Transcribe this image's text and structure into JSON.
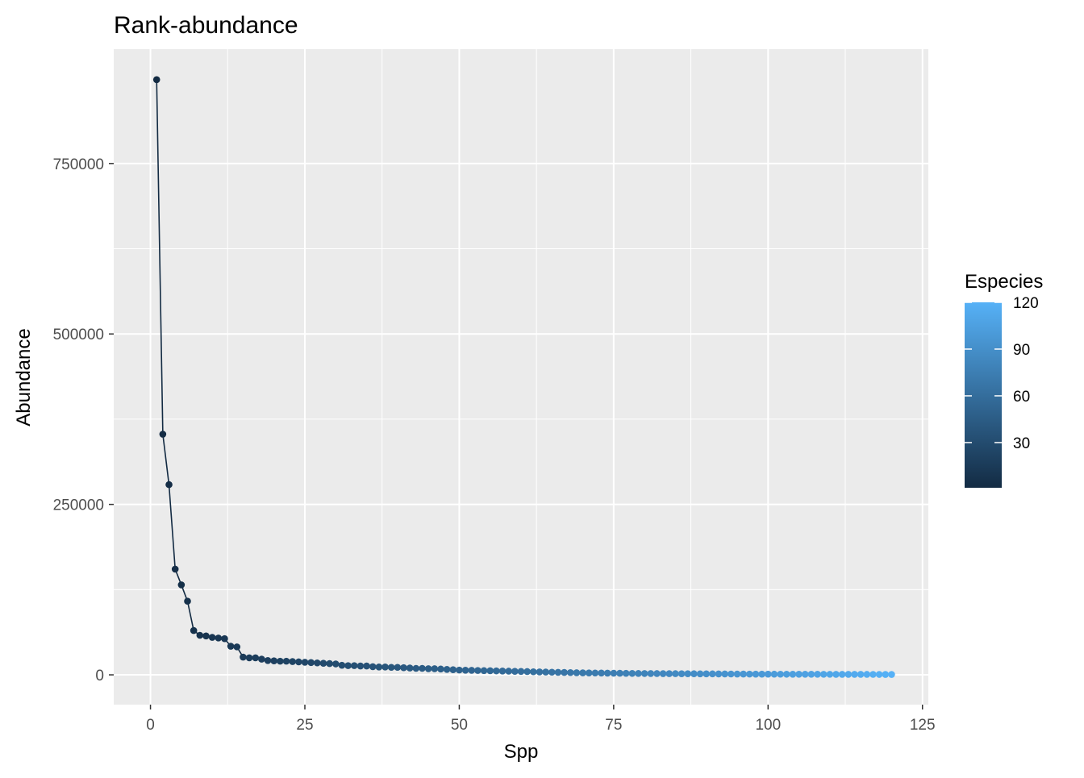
{
  "chart_data": {
    "type": "line",
    "title": "Rank-abundance",
    "xlabel": "Spp",
    "ylabel": "Abundance",
    "xlim": [
      -5.95,
      125.95
    ],
    "ylim": [
      -43700,
      917700
    ],
    "x_ticks": [
      0,
      25,
      50,
      75,
      100,
      125
    ],
    "x_tick_labels": [
      "0",
      "25",
      "50",
      "75",
      "100",
      "125"
    ],
    "y_ticks": [
      0,
      250000,
      500000,
      750000
    ],
    "y_tick_labels": [
      "0",
      "250000",
      "500000",
      "750000"
    ],
    "grid": true,
    "legend": {
      "title": "Especies",
      "position": "right",
      "type": "colorbar",
      "range": [
        1,
        120
      ],
      "ticks": [
        30,
        60,
        90,
        120
      ],
      "tick_labels": [
        "30",
        "60",
        "90",
        "120"
      ],
      "color_low": "#132B43",
      "color_high": "#56B1F7"
    },
    "series": [
      {
        "x": [
          1,
          2,
          3,
          4,
          5,
          6,
          7,
          8,
          9,
          10,
          11,
          12,
          13,
          14,
          15,
          16,
          17,
          18,
          19,
          20,
          21,
          22,
          23,
          24,
          25,
          26,
          27,
          28,
          29,
          30,
          31,
          32,
          33,
          34,
          35,
          36,
          37,
          38,
          39,
          40,
          41,
          42,
          43,
          44,
          45,
          46,
          47,
          48,
          49,
          50,
          51,
          52,
          53,
          54,
          55,
          56,
          57,
          58,
          59,
          60,
          61,
          62,
          63,
          64,
          65,
          66,
          67,
          68,
          69,
          70,
          71,
          72,
          73,
          74,
          75,
          76,
          77,
          78,
          79,
          80,
          81,
          82,
          83,
          84,
          85,
          86,
          87,
          88,
          89,
          90,
          91,
          92,
          93,
          94,
          95,
          96,
          97,
          98,
          99,
          100,
          101,
          102,
          103,
          104,
          105,
          106,
          107,
          108,
          109,
          110,
          111,
          112,
          113,
          114,
          115,
          116,
          117,
          118,
          119,
          120
        ],
        "values": [
          873000,
          353000,
          279000,
          155000,
          132000,
          108000,
          65000,
          58000,
          57000,
          55000,
          54000,
          53000,
          42000,
          41000,
          26000,
          25000,
          25000,
          23000,
          21000,
          20500,
          20000,
          20000,
          19500,
          19000,
          18500,
          18000,
          17500,
          17000,
          16500,
          16000,
          14000,
          13500,
          13500,
          13000,
          13000,
          12000,
          11500,
          11500,
          11000,
          11000,
          10500,
          10000,
          9500,
          9500,
          9000,
          9000,
          8500,
          8000,
          7500,
          7000,
          6800,
          6600,
          6400,
          6200,
          6000,
          5800,
          5600,
          5400,
          5200,
          5000,
          4800,
          4500,
          4300,
          4100,
          3900,
          3700,
          3500,
          3300,
          3100,
          2900,
          2800,
          2700,
          2600,
          2500,
          2400,
          2300,
          2200,
          2100,
          2000,
          1950,
          1900,
          1850,
          1800,
          1750,
          1700,
          1650,
          1600,
          1550,
          1500,
          1450,
          1400,
          1350,
          1300,
          1250,
          1200,
          1150,
          1100,
          1050,
          1000,
          980,
          960,
          940,
          920,
          900,
          880,
          860,
          840,
          820,
          800,
          780,
          760,
          740,
          720,
          700,
          680,
          660,
          640,
          620,
          600,
          580
        ]
      }
    ]
  },
  "colors": {
    "panel_bg": "#EBEBEB",
    "grid_major": "#FFFFFF",
    "line": "#132B43",
    "tick_text": "#4D4D4D",
    "tick_mark": "#333333"
  }
}
